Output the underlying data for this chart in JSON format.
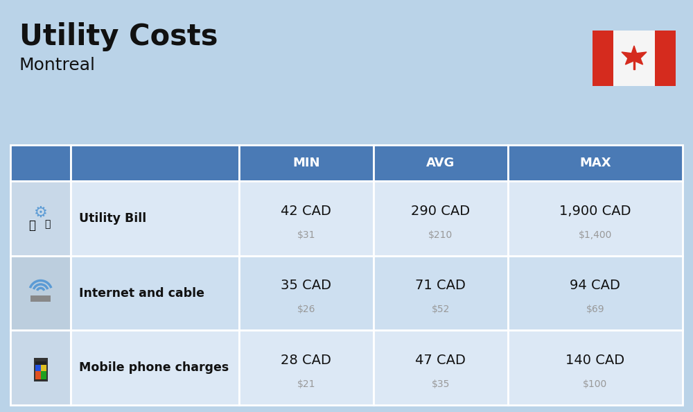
{
  "title": "Utility Costs",
  "subtitle": "Montreal",
  "background_color": "#bad3e8",
  "header_color": "#4a7ab5",
  "header_text_color": "#ffffff",
  "row_colors_odd": "#dce8f5",
  "row_colors_even": "#cddff0",
  "icon_col_odd": "#c8d8e8",
  "icon_col_even": "#bccede",
  "text_color": "#111111",
  "usd_color": "#999999",
  "border_color": "#ffffff",
  "rows": [
    {
      "label": "Utility Bill",
      "min_cad": "42 CAD",
      "min_usd": "$31",
      "avg_cad": "290 CAD",
      "avg_usd": "$210",
      "max_cad": "1,900 CAD",
      "max_usd": "$1,400"
    },
    {
      "label": "Internet and cable",
      "min_cad": "35 CAD",
      "min_usd": "$26",
      "avg_cad": "71 CAD",
      "avg_usd": "$52",
      "max_cad": "94 CAD",
      "max_usd": "$69"
    },
    {
      "label": "Mobile phone charges",
      "min_cad": "28 CAD",
      "min_usd": "$21",
      "avg_cad": "47 CAD",
      "avg_usd": "$35",
      "max_cad": "140 CAD",
      "max_usd": "$100"
    }
  ],
  "col_headers": [
    "MIN",
    "AVG",
    "MAX"
  ],
  "flag_red": "#d52b1e",
  "flag_white": "#f5f5f5"
}
